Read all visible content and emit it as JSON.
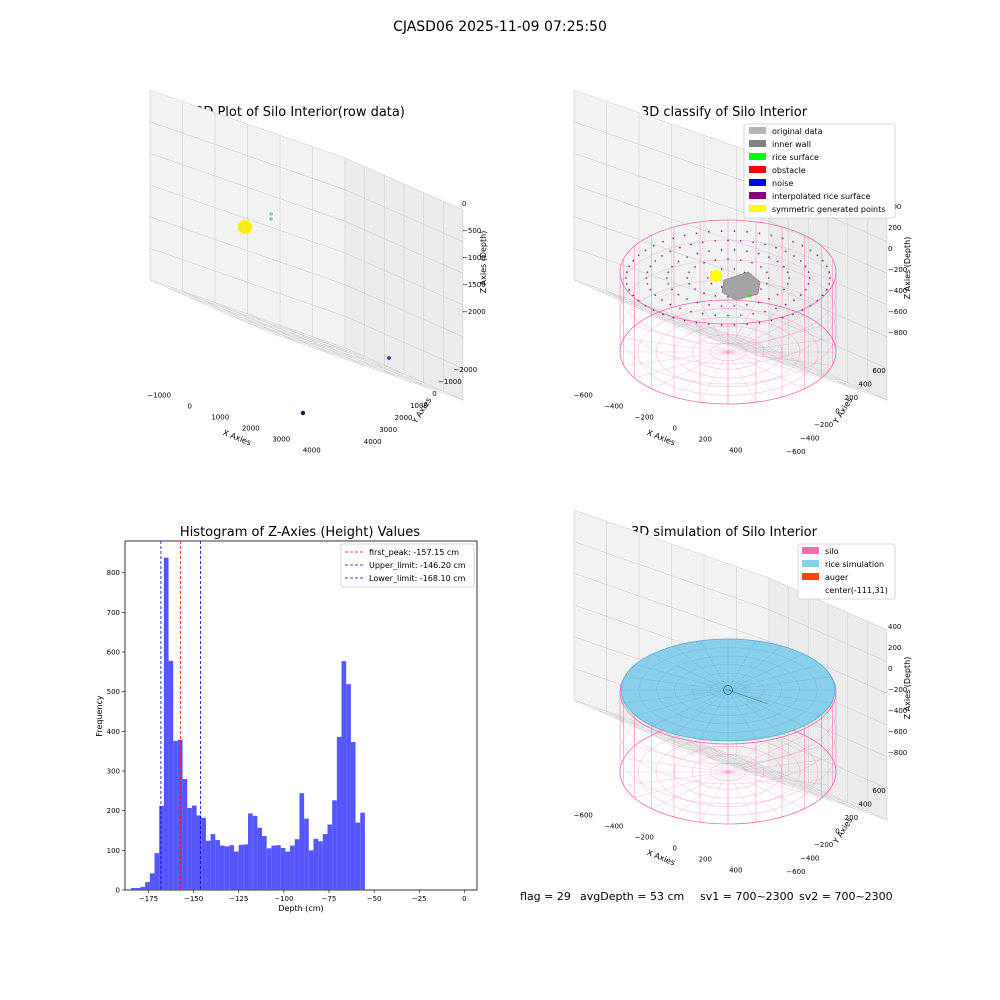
{
  "suptitle": "CJASD06 2025-11-09 07:25:50",
  "footer": {
    "flag": "flag = 29",
    "avg_depth": "avgDepth = 53 cm",
    "sv1": "sv1 = 700~2300",
    "sv2": "sv2 = 700~2300"
  },
  "colors": {
    "silo": "#ff69b4",
    "rice_sim": "#87ceeb",
    "hist_bar": "#4d4dff",
    "first_peak": "#ff0000",
    "limit": "#0000cc"
  },
  "chart_data": [
    {
      "type": "scatter3d",
      "title": "3D Plot of Silo Interior(row data)",
      "xlabel": "X Axies",
      "ylabel": "Y Axies",
      "zlabel": "Z Axies (Depth)",
      "x_ticks": [
        "−1000",
        "0",
        "1000",
        "2000",
        "3000",
        "4000"
      ],
      "y_ticks": [
        "−2000",
        "−1000",
        "0",
        "1000",
        "2000",
        "3000",
        "4000"
      ],
      "z_ticks": [
        "−2000",
        "−1500",
        "−1000",
        "−500",
        "0"
      ],
      "xlim": [
        -1500,
        4000
      ],
      "ylim": [
        -2500,
        4500
      ],
      "zlim": [
        -2200,
        0
      ],
      "points": [
        {
          "x": -1100,
          "y": 3800,
          "z": -350,
          "color": "#ffea00",
          "count": "cluster"
        },
        {
          "x": -900,
          "y": 3500,
          "z": -250,
          "color": "#80cfb0"
        },
        {
          "x": 3500,
          "y": 1200,
          "z": -2200,
          "color": "#3b3b9e"
        },
        {
          "x": 2900,
          "y": -1800,
          "z": -2200,
          "color": "#440154"
        }
      ]
    },
    {
      "type": "scatter3d",
      "title": "3D classify of Silo Interior",
      "xlabel": "X Axies",
      "ylabel": "Y Axies",
      "zlabel": "Z Axies (Depth)",
      "x_ticks": [
        "−600",
        "−400",
        "−200",
        "0",
        "200",
        "400"
      ],
      "y_ticks": [
        "−600",
        "−400",
        "−200",
        "0",
        "200",
        "400",
        "600"
      ],
      "z_ticks": [
        "−800",
        "−600",
        "−400",
        "−200",
        "0",
        "200",
        "400"
      ],
      "legend": [
        {
          "label": "original data",
          "color": "#b3b3b3"
        },
        {
          "label": "inner wall",
          "color": "#808080"
        },
        {
          "label": "rice surface",
          "color": "#00ff00"
        },
        {
          "label": "obstacle",
          "color": "#ff0000"
        },
        {
          "label": "noise",
          "color": "#0000ff"
        },
        {
          "label": "interpolated rice surface",
          "color": "#800080"
        },
        {
          "label": "symmetric generated points",
          "color": "#ffff00"
        }
      ],
      "legend_loc": "upper right"
    },
    {
      "type": "bar",
      "title": "Histogram of Z-Axies (Height) Values",
      "xlabel": "Depth (cm)",
      "ylabel": "Frequency",
      "xlim": [
        -188,
        7
      ],
      "ylim": [
        0,
        880
      ],
      "x_ticks": [
        -175,
        -150,
        -125,
        -100,
        -75,
        -50,
        -25,
        0
      ],
      "x_tick_labels": [
        "−175",
        "−150",
        "−125",
        "−100",
        "−75",
        "−50",
        "−25",
        "0"
      ],
      "y_ticks": [
        0,
        100,
        200,
        300,
        400,
        500,
        600,
        700,
        800
      ],
      "bin_start": -184.6,
      "bin_width": 2.59,
      "values": [
        5,
        5,
        8,
        20,
        42,
        93,
        212,
        838,
        578,
        376,
        379,
        280,
        207,
        213,
        188,
        182,
        124,
        141,
        126,
        112,
        110,
        113,
        97,
        114,
        115,
        193,
        187,
        157,
        136,
        105,
        112,
        113,
        106,
        97,
        112,
        128,
        244,
        180,
        100,
        129,
        123,
        141,
        165,
        226,
        386,
        577,
        519,
        373,
        170,
        195
      ],
      "vlines": [
        {
          "name": "first_peak: -157.15 cm",
          "x": -157.15,
          "color": "#ff0000"
        },
        {
          "name": "Upper_limit: -146.20 cm",
          "x": -146.2,
          "color": "#0000cc"
        },
        {
          "name": "Lower_limit: -168.10 cm",
          "x": -168.1,
          "color": "#0000cc"
        }
      ],
      "legend_loc": "upper right"
    },
    {
      "type": "surface3d",
      "title": "3D simulation of Silo Interior",
      "xlabel": "X Axies",
      "ylabel": "Y Axies",
      "zlabel": "Z Axies (Depth)",
      "x_ticks": [
        "−600",
        "−400",
        "−200",
        "0",
        "200",
        "400"
      ],
      "y_ticks": [
        "−600",
        "−400",
        "−200",
        "0",
        "200",
        "400",
        "600"
      ],
      "z_ticks": [
        "−800",
        "−600",
        "−400",
        "−200",
        "0",
        "200",
        "400"
      ],
      "legend": [
        {
          "label": "silo",
          "color": "#ff69b4"
        },
        {
          "label": "rice simulation",
          "color": "#87ceeb"
        },
        {
          "label": "auger",
          "color": "#ff4500"
        },
        {
          "label": "center(-111,31)",
          "color": ""
        }
      ],
      "legend_loc": "upper right"
    }
  ]
}
